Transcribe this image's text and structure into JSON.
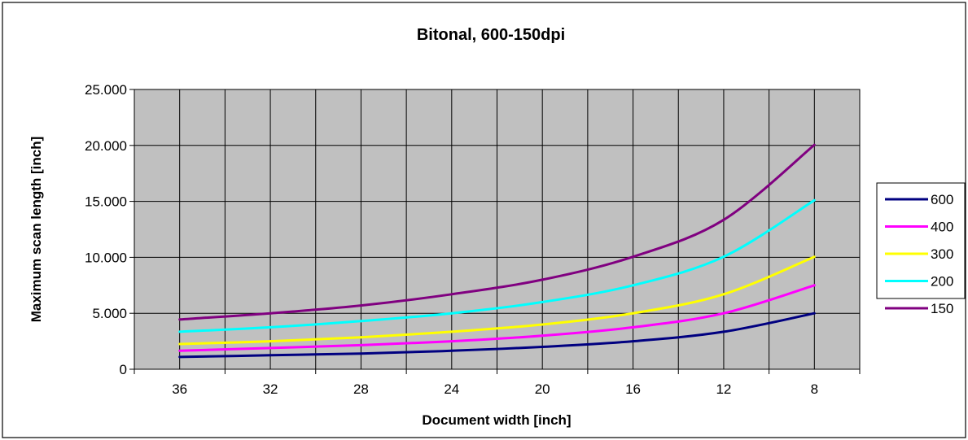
{
  "chart_data": {
    "type": "line",
    "title": "Bitonal, 600-150dpi",
    "xlabel": "Document width [inch]",
    "ylabel": "Maximum scan length [inch]",
    "categories": [
      "36",
      "32",
      "28",
      "24",
      "20",
      "16",
      "12",
      "8"
    ],
    "y_ticks": [
      "0",
      "5.000",
      "10.000",
      "15.000",
      "20.000",
      "25.000"
    ],
    "ylim": [
      0,
      25000
    ],
    "grid": true,
    "legend_position": "right",
    "plot_background": "#c0c0c0",
    "series": [
      {
        "name": "600",
        "color": "#000080",
        "values": [
          1100,
          1250,
          1400,
          1650,
          2000,
          2500,
          3350,
          5000
        ]
      },
      {
        "name": "400",
        "color": "#ff00ff",
        "values": [
          1650,
          1900,
          2150,
          2500,
          3000,
          3750,
          5000,
          7500
        ]
      },
      {
        "name": "300",
        "color": "#ffff00",
        "values": [
          2250,
          2500,
          2850,
          3350,
          4000,
          5000,
          6700,
          10050
        ]
      },
      {
        "name": "200",
        "color": "#00ffff",
        "values": [
          3350,
          3750,
          4300,
          5000,
          6000,
          7500,
          10050,
          15100
        ]
      },
      {
        "name": "150",
        "color": "#800080",
        "values": [
          4450,
          5000,
          5700,
          6700,
          8000,
          10050,
          13350,
          20050
        ]
      }
    ]
  }
}
